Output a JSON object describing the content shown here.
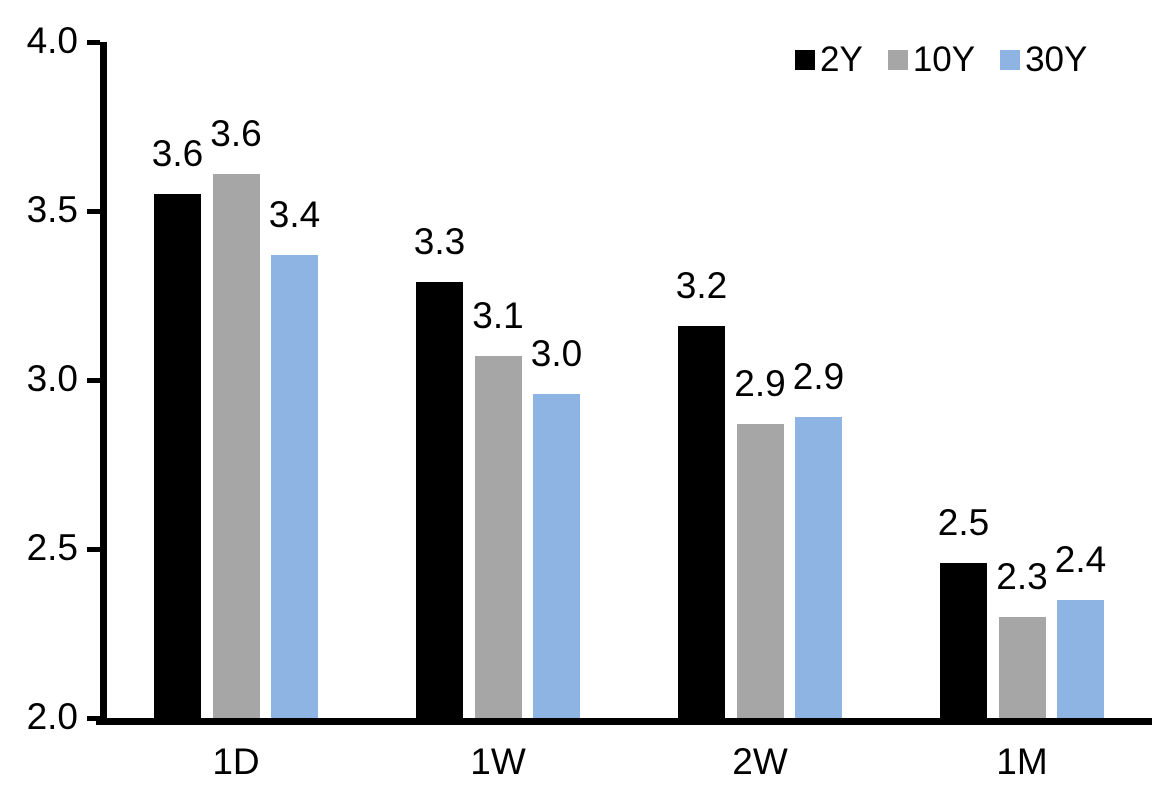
{
  "chart_data": {
    "type": "bar",
    "title": "",
    "xlabel": "",
    "ylabel": "",
    "categories": [
      "1D",
      "1W",
      "2W",
      "1M"
    ],
    "series": [
      {
        "name": "2Y",
        "color": "#000000",
        "values": [
          3.55,
          3.29,
          3.16,
          2.46
        ],
        "labels": [
          "3.6",
          "3.3",
          "3.2",
          "2.5"
        ]
      },
      {
        "name": "10Y",
        "color": "#A6A6A6",
        "values": [
          3.61,
          3.07,
          2.87,
          2.3
        ],
        "labels": [
          "3.6",
          "3.1",
          "2.9",
          "2.3"
        ]
      },
      {
        "name": "30Y",
        "color": "#8EB4E3",
        "values": [
          3.37,
          2.96,
          2.89,
          2.35
        ],
        "labels": [
          "3.4",
          "3.0",
          "2.9",
          "2.4"
        ]
      }
    ],
    "ylim": [
      2.0,
      4.0
    ],
    "yticks": [
      "2.0",
      "2.5",
      "3.0",
      "3.5",
      "4.0"
    ],
    "grid": false,
    "legend_position": "top-right",
    "axis_color": "#000000",
    "background_color": "#FFFFFF"
  }
}
